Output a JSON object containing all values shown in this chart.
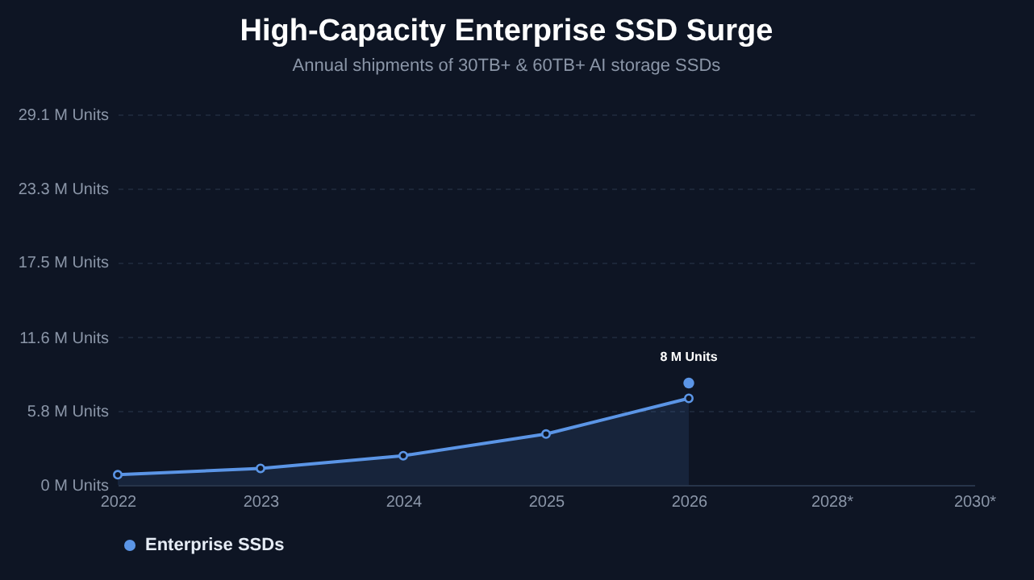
{
  "chart_data": {
    "type": "area",
    "title": "High-Capacity Enterprise SSD Surge",
    "subtitle": "Annual shipments of 30TB+ & 60TB+ AI storage SSDs",
    "categories": [
      "2022",
      "2023",
      "2024",
      "2025",
      "2026",
      "2028*",
      "2030*"
    ],
    "series": [
      {
        "name": "Enterprise SSDs",
        "color": "#5b95e6",
        "values": [
          0.8,
          1.3,
          2.3,
          4.0,
          6.8,
          null,
          null
        ]
      },
      {
        "type": "scatter",
        "color": "#5b95e6",
        "values": [
          null,
          null,
          null,
          null,
          8,
          null,
          null
        ]
      }
    ],
    "ylim": [
      0,
      29.1
    ],
    "yticks": [
      {
        "value": 0,
        "label": "0 M Units"
      },
      {
        "value": 5.8,
        "label": "5.8 M Units"
      },
      {
        "value": 11.6,
        "label": "11.6 M Units"
      },
      {
        "value": 17.5,
        "label": "17.5 M Units"
      },
      {
        "value": 23.3,
        "label": "23.3 M Units"
      },
      {
        "value": 29.1,
        "label": "29.1 M Units"
      }
    ],
    "annotations": [
      {
        "text": "8 M Units",
        "x": "2026",
        "y": 8
      }
    ],
    "grid": "y",
    "legend": "bottom left",
    "marker": "circle",
    "line_style": "solid"
  }
}
